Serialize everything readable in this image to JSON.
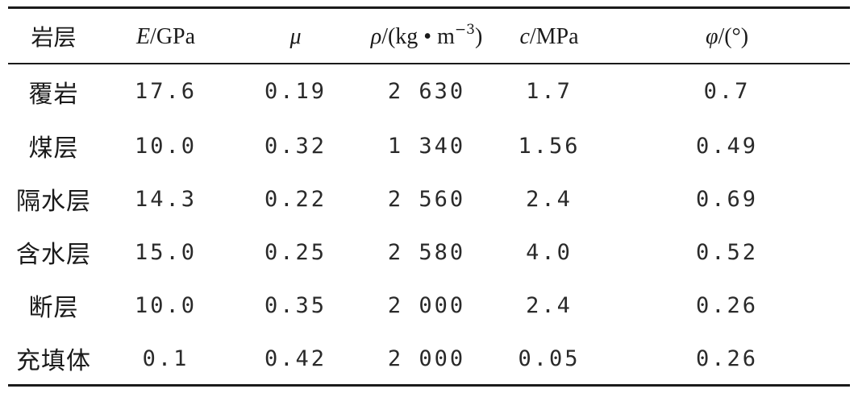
{
  "table": {
    "headers": {
      "layer": "岩层",
      "E_symbol": "E",
      "E_unit": "/GPa",
      "mu_symbol": "μ",
      "rho_symbol": "ρ",
      "rho_unit_prefix": "/(kg • m",
      "rho_unit_exp": "−3",
      "rho_unit_suffix": ")",
      "c_symbol": "c",
      "c_unit": "/MPa",
      "phi_symbol": "φ",
      "phi_unit": "/(°)"
    },
    "rows": [
      {
        "layer": "覆岩",
        "E": "17.6",
        "mu": "0.19",
        "rho": "2 630",
        "c": "1.7",
        "phi": "0.7"
      },
      {
        "layer": "煤层",
        "E": "10.0",
        "mu": "0.32",
        "rho": "1 340",
        "c": "1.56",
        "phi": "0.49"
      },
      {
        "layer": "隔水层",
        "E": "14.3",
        "mu": "0.22",
        "rho": "2 560",
        "c": "2.4",
        "phi": "0.69"
      },
      {
        "layer": "含水层",
        "E": "15.0",
        "mu": "0.25",
        "rho": "2 580",
        "c": "4.0",
        "phi": "0.52"
      },
      {
        "layer": "断层",
        "E": "10.0",
        "mu": "0.35",
        "rho": "2 000",
        "c": "2.4",
        "phi": "0.26"
      },
      {
        "layer": "充填体",
        "E": "0.1",
        "mu": "0.42",
        "rho": "2 000",
        "c": "0.05",
        "phi": "0.26"
      }
    ]
  }
}
